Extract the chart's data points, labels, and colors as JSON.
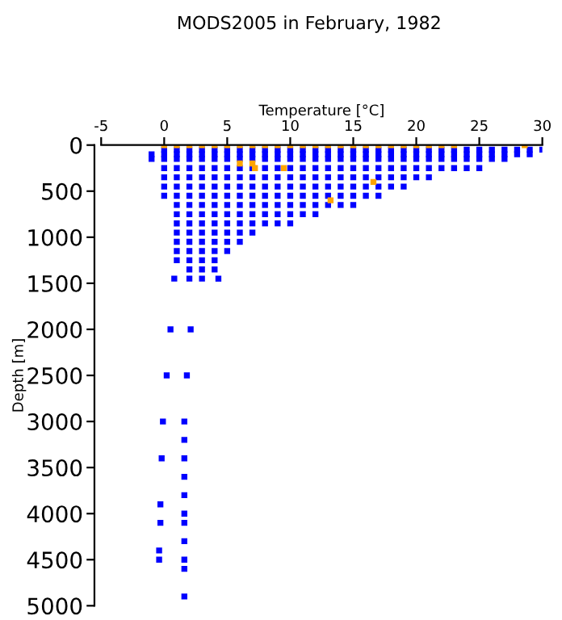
{
  "chart_data": {
    "type": "scatter",
    "title": "MODS2005 in February, 1982",
    "xlabel": "Temperature [°C]",
    "ylabel": "Depth [m]",
    "xlim": [
      -5,
      30
    ],
    "xticks": [
      -5,
      0,
      5,
      10,
      15,
      20,
      25,
      30
    ],
    "ylim": [
      5000,
      0
    ],
    "yticks": [
      0,
      500,
      1000,
      1500,
      2000,
      2500,
      3000,
      3500,
      4000,
      4500,
      5000
    ],
    "grid": false,
    "legend": false,
    "marker": "square",
    "series": [
      {
        "color": "#0000ff",
        "x": [
          0,
          1,
          2,
          3,
          4,
          5,
          6,
          7,
          8,
          9,
          10,
          11,
          12,
          13,
          14,
          15,
          16,
          17,
          18,
          19,
          20,
          21,
          22,
          23,
          24,
          25,
          26,
          27,
          28,
          29,
          30,
          -1,
          0,
          1,
          2,
          3,
          4,
          5,
          6,
          7,
          8,
          9,
          10,
          11,
          12,
          13,
          14,
          15,
          16,
          17,
          18,
          19,
          20,
          21,
          22,
          23,
          24,
          25,
          26,
          27,
          28,
          29,
          -1,
          0,
          1,
          2,
          3,
          4,
          5,
          6,
          7,
          8,
          9,
          10,
          11,
          12,
          13,
          14,
          15,
          16,
          17,
          18,
          19,
          20,
          21,
          22,
          23,
          24,
          25,
          26,
          27,
          0,
          1,
          2,
          3,
          4,
          5,
          6,
          7,
          8,
          9,
          10,
          11,
          12,
          13,
          14,
          15,
          16,
          17,
          18,
          19,
          20,
          21,
          22,
          23,
          24,
          25,
          0,
          1,
          2,
          3,
          4,
          5,
          6,
          7,
          8,
          9,
          10,
          11,
          12,
          13,
          14,
          15,
          16,
          17,
          18,
          19,
          20,
          21,
          0,
          1,
          2,
          3,
          4,
          5,
          6,
          7,
          8,
          9,
          10,
          11,
          12,
          13,
          14,
          15,
          16,
          17,
          18,
          19,
          0,
          1,
          2,
          3,
          4,
          5,
          6,
          7,
          8,
          9,
          10,
          11,
          12,
          13,
          14,
          15,
          16,
          17,
          1,
          2,
          3,
          4,
          5,
          6,
          7,
          8,
          9,
          10,
          11,
          12,
          13,
          14,
          15,
          1,
          2,
          3,
          4,
          5,
          6,
          7,
          8,
          9,
          10,
          11,
          12,
          1,
          2,
          3,
          4,
          5,
          6,
          7,
          8,
          9,
          10,
          1,
          2,
          3,
          4,
          5,
          6,
          7,
          1,
          2,
          3,
          4,
          5,
          6,
          1,
          2,
          3,
          4,
          5,
          1,
          2,
          3,
          4,
          2,
          3,
          4,
          2,
          3,
          4.3,
          2.1,
          1.8,
          1.6,
          1.6,
          1.6,
          1.6,
          1.6,
          1.6,
          1.6,
          1.6,
          1.6,
          1.6,
          1.6,
          0.8,
          0.5,
          0.2,
          -0.1,
          -0.2,
          -0.3,
          -0.3,
          -0.4,
          -0.4
        ],
        "values": [
          50,
          50,
          50,
          50,
          50,
          50,
          50,
          50,
          50,
          50,
          50,
          50,
          50,
          50,
          50,
          50,
          50,
          50,
          50,
          50,
          50,
          50,
          50,
          50,
          50,
          50,
          50,
          50,
          50,
          50,
          50,
          100,
          100,
          100,
          100,
          100,
          100,
          100,
          100,
          100,
          100,
          100,
          100,
          100,
          100,
          100,
          100,
          100,
          100,
          100,
          100,
          100,
          100,
          100,
          100,
          100,
          100,
          100,
          100,
          100,
          100,
          100,
          150,
          150,
          150,
          150,
          150,
          150,
          150,
          150,
          150,
          150,
          150,
          150,
          150,
          150,
          150,
          150,
          150,
          150,
          150,
          150,
          150,
          150,
          150,
          150,
          150,
          150,
          150,
          150,
          150,
          250,
          250,
          250,
          250,
          250,
          250,
          250,
          250,
          250,
          250,
          250,
          250,
          250,
          250,
          250,
          250,
          250,
          250,
          250,
          250,
          250,
          250,
          250,
          250,
          250,
          250,
          350,
          350,
          350,
          350,
          350,
          350,
          350,
          350,
          350,
          350,
          350,
          350,
          350,
          350,
          350,
          350,
          350,
          350,
          350,
          350,
          350,
          350,
          450,
          450,
          450,
          450,
          450,
          450,
          450,
          450,
          450,
          450,
          450,
          450,
          450,
          450,
          450,
          450,
          450,
          450,
          450,
          450,
          550,
          550,
          550,
          550,
          550,
          550,
          550,
          550,
          550,
          550,
          550,
          550,
          550,
          550,
          550,
          550,
          550,
          550,
          650,
          650,
          650,
          650,
          650,
          650,
          650,
          650,
          650,
          650,
          650,
          650,
          650,
          650,
          650,
          750,
          750,
          750,
          750,
          750,
          750,
          750,
          750,
          750,
          750,
          750,
          750,
          850,
          850,
          850,
          850,
          850,
          850,
          850,
          850,
          850,
          850,
          950,
          950,
          950,
          950,
          950,
          950,
          950,
          1050,
          1050,
          1050,
          1050,
          1050,
          1050,
          1150,
          1150,
          1150,
          1150,
          1150,
          1250,
          1250,
          1250,
          1250,
          1350,
          1350,
          1350,
          1450,
          1450,
          1450,
          2000,
          2500,
          3000,
          3200,
          3400,
          3600,
          3800,
          4000,
          4100,
          4300,
          4500,
          4600,
          4900,
          1450,
          2000,
          2500,
          3000,
          3400,
          3900,
          4100,
          4400,
          4500
        ]
      },
      {
        "color": "#ffa500",
        "x": [
          0,
          1,
          2,
          3,
          4,
          5,
          6,
          7,
          8,
          9,
          10,
          11,
          12,
          13,
          14,
          15,
          16,
          17,
          18,
          19,
          20,
          21,
          22,
          23,
          6,
          7,
          7.2,
          9.5,
          16.6,
          13.2,
          28.6
        ],
        "values": [
          0,
          0,
          0,
          0,
          0,
          0,
          0,
          0,
          0,
          0,
          0,
          0,
          0,
          0,
          0,
          0,
          0,
          0,
          0,
          0,
          0,
          0,
          0,
          0,
          200,
          200,
          250,
          250,
          400,
          600,
          0
        ]
      }
    ]
  }
}
